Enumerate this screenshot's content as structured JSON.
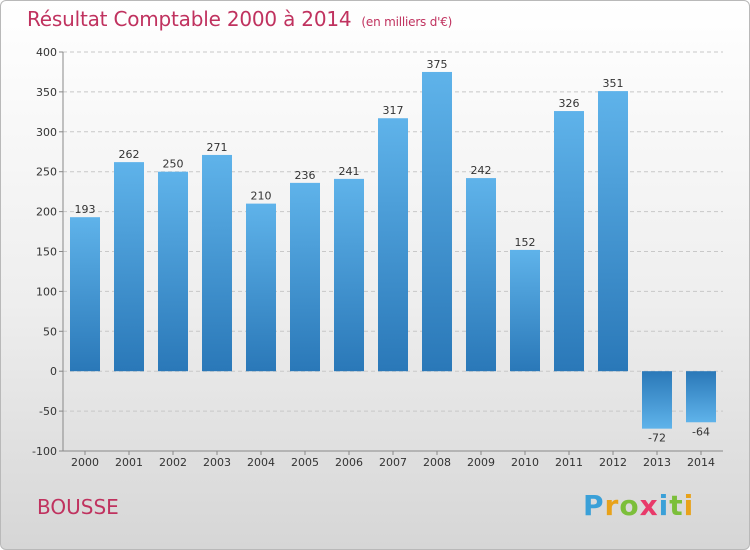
{
  "title": "Résultat Comptable 2000 à 2014",
  "subtitle": "(en milliers d'€)",
  "commune": "BOUSSE",
  "logo_text": "Proxiti",
  "colors": {
    "bar_top": "#5fb3ea",
    "bar_bottom": "#2a78b8",
    "title": "#c0325f"
  },
  "chart_data": {
    "type": "bar",
    "title": "Résultat Comptable 2000 à 2014",
    "subtitle": "(en milliers d'€)",
    "categories": [
      "2000",
      "2001",
      "2002",
      "2003",
      "2004",
      "2005",
      "2006",
      "2007",
      "2008",
      "2009",
      "2010",
      "2011",
      "2012",
      "2013",
      "2014"
    ],
    "values": [
      193,
      262,
      250,
      271,
      210,
      236,
      241,
      317,
      375,
      242,
      152,
      326,
      351,
      -72,
      -64
    ],
    "ylim": [
      -100,
      400
    ],
    "yticks": [
      -100,
      -50,
      0,
      50,
      100,
      150,
      200,
      250,
      300,
      350,
      400
    ],
    "grid": true,
    "legend": "none"
  }
}
